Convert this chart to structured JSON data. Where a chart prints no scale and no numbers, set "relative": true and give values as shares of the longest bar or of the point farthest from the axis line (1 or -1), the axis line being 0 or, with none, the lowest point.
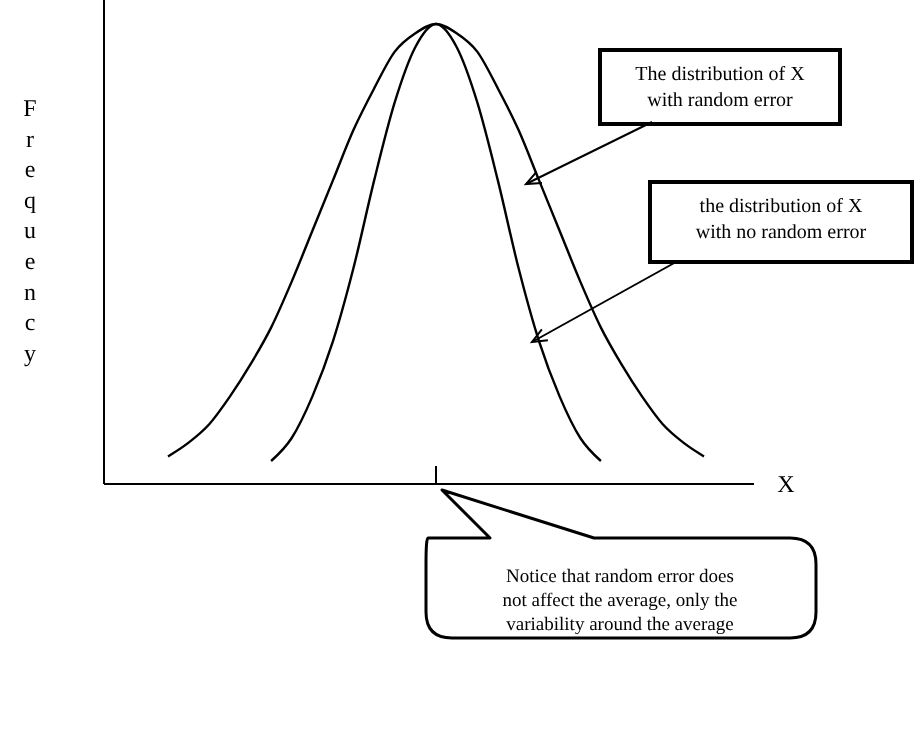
{
  "chart_data": {
    "type": "line",
    "relative": true,
    "xlabel": "X",
    "ylabel": "Frequency",
    "categories": [
      null,
      null,
      null,
      null,
      null,
      null,
      null,
      null,
      null,
      null,
      null,
      null,
      null,
      null,
      null,
      null,
      null,
      null,
      null,
      null,
      null,
      null,
      null,
      null,
      null,
      null,
      null
    ],
    "series": [
      {
        "color": "#000000",
        "values": [
          0.06,
          0.09,
          0.13,
          0.19,
          0.26,
          0.34,
          0.44,
          0.55,
          0.66,
          0.77,
          0.86,
          0.94,
          0.98,
          1,
          0.98,
          0.94,
          0.86,
          0.77,
          0.66,
          0.55,
          0.44,
          0.34,
          0.26,
          0.19,
          0.13,
          0.09,
          0.06
        ]
      },
      {
        "color": "#000000",
        "values": [
          null,
          null,
          null,
          null,
          null,
          0.05,
          0.1,
          0.19,
          0.31,
          0.47,
          0.66,
          0.83,
          0.95,
          1,
          0.95,
          0.83,
          0.66,
          0.47,
          0.31,
          0.19,
          0.1,
          0.05,
          null,
          null,
          null,
          null,
          null
        ]
      }
    ],
    "marker": "none",
    "line_style": "solid",
    "annotations": [
      "The distribution of X with random error",
      "the distribution of X with no random error",
      "Notice that random error does not affect the average, only the variability around the average"
    ]
  }
}
